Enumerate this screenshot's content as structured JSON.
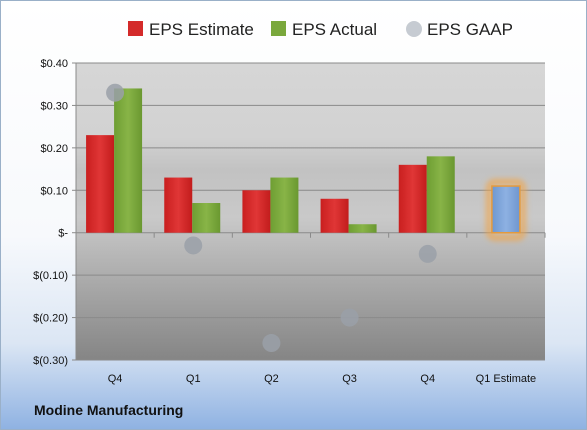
{
  "company": "Modine Manufacturing",
  "chart_data": {
    "type": "bar",
    "categories": [
      "Q4",
      "Q1",
      "Q2",
      "Q3",
      "Q4",
      "Q1 Estimate"
    ],
    "series": [
      {
        "name": "EPS Estimate",
        "color": "#d42a2a",
        "values": [
          0.23,
          0.13,
          0.1,
          0.08,
          0.16,
          null
        ]
      },
      {
        "name": "EPS Actual",
        "color": "#7aa83c",
        "values": [
          0.34,
          0.07,
          0.13,
          0.02,
          0.18,
          null
        ]
      },
      {
        "name": "EPS GAAP",
        "color": "#a9aeb6",
        "marker": "circle",
        "values": [
          0.33,
          -0.03,
          -0.26,
          -0.2,
          -0.05,
          null
        ]
      }
    ],
    "estimate_bar": {
      "category": "Q1 Estimate",
      "value": 0.11,
      "color": "#7fa4d8",
      "glow": "#f0a64a"
    },
    "yticks": [
      0.4,
      0.3,
      0.2,
      0.1,
      0,
      -0.1,
      -0.2,
      -0.3
    ],
    "ytick_labels": [
      "$0.40",
      "$0.30",
      "$0.20",
      "$0.10",
      "$-",
      "$(0.10)",
      "$(0.20)",
      "$(0.30)"
    ],
    "ylim": [
      -0.3,
      0.4
    ],
    "legend_position": "top",
    "grid": true
  }
}
